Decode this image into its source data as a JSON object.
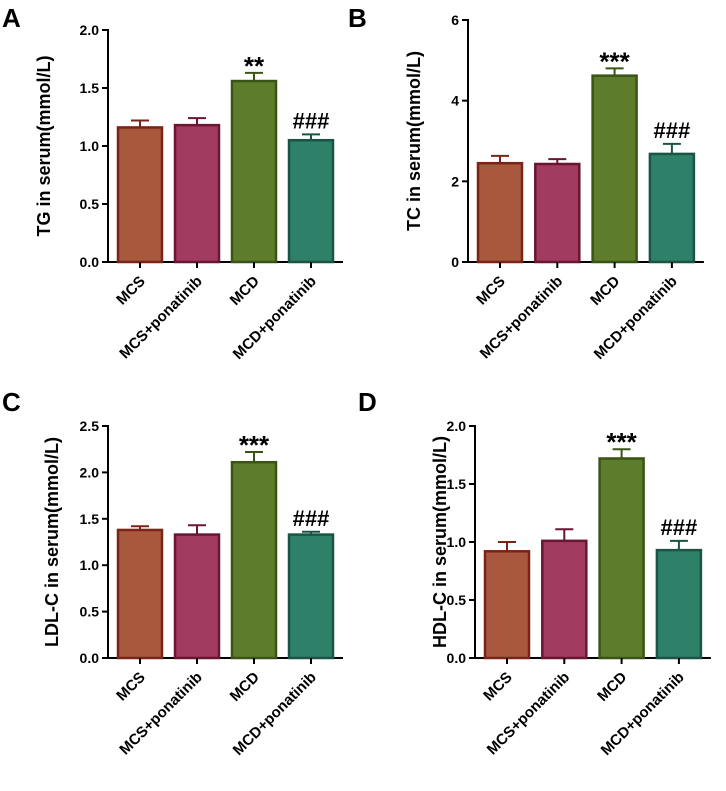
{
  "colors": {
    "MCS": {
      "fill": "#A8583D",
      "stroke": "#7A2418"
    },
    "MCS+ponatinib": {
      "fill": "#A13B5F",
      "stroke": "#6A1534"
    },
    "MCD": {
      "fill": "#5E7D2C",
      "stroke": "#3A5416"
    },
    "MCD+ponatinib": {
      "fill": "#2E8068",
      "stroke": "#1B5444"
    }
  },
  "chart_data": [
    {
      "panel": "A",
      "type": "bar",
      "ylabel": "TG in serum(mmol/L)",
      "ylim": [
        0,
        2.0
      ],
      "yticks": [
        "0.0",
        "0.5",
        "1.0",
        "1.5",
        "2.0"
      ],
      "categories": [
        "MCS",
        "MCS+ponatinib",
        "MCD",
        "MCD+ponatinib"
      ],
      "values": [
        1.16,
        1.18,
        1.56,
        1.05
      ],
      "errors": [
        0.06,
        0.06,
        0.07,
        0.05
      ],
      "significance": [
        "",
        "",
        "**",
        "###"
      ]
    },
    {
      "panel": "B",
      "type": "bar",
      "ylabel": "TC in serum(mmol/L)",
      "ylim": [
        0,
        6
      ],
      "yticks": [
        "0",
        "2",
        "4",
        "6"
      ],
      "categories": [
        "MCS",
        "MCS+ponatinib",
        "MCD",
        "MCD+ponatinib"
      ],
      "values": [
        2.45,
        2.43,
        4.62,
        2.68
      ],
      "errors": [
        0.18,
        0.12,
        0.18,
        0.25
      ],
      "significance": [
        "",
        "",
        "***",
        "###"
      ]
    },
    {
      "panel": "C",
      "type": "bar",
      "ylabel": "LDL-C in serum(mmol/L)",
      "ylim": [
        0,
        2.5
      ],
      "yticks": [
        "0.0",
        "0.5",
        "1.0",
        "1.5",
        "2.0",
        "2.5"
      ],
      "categories": [
        "MCS",
        "MCS+ponatinib",
        "MCD",
        "MCD+ponatinib"
      ],
      "values": [
        1.38,
        1.33,
        2.11,
        1.33
      ],
      "errors": [
        0.04,
        0.1,
        0.11,
        0.03
      ],
      "significance": [
        "",
        "",
        "***",
        "###"
      ]
    },
    {
      "panel": "D",
      "type": "bar",
      "ylabel": "HDL-C in serum(mmol/L)",
      "ylim": [
        0,
        2.0
      ],
      "yticks": [
        "0.0",
        "0.5",
        "1.0",
        "1.5",
        "2.0"
      ],
      "categories": [
        "MCS",
        "MCS+ponatinib",
        "MCD",
        "MCD+ponatinib"
      ],
      "values": [
        0.92,
        1.01,
        1.72,
        0.93
      ],
      "errors": [
        0.08,
        0.1,
        0.08,
        0.08
      ],
      "significance": [
        "",
        "",
        "***",
        "###"
      ]
    }
  ]
}
